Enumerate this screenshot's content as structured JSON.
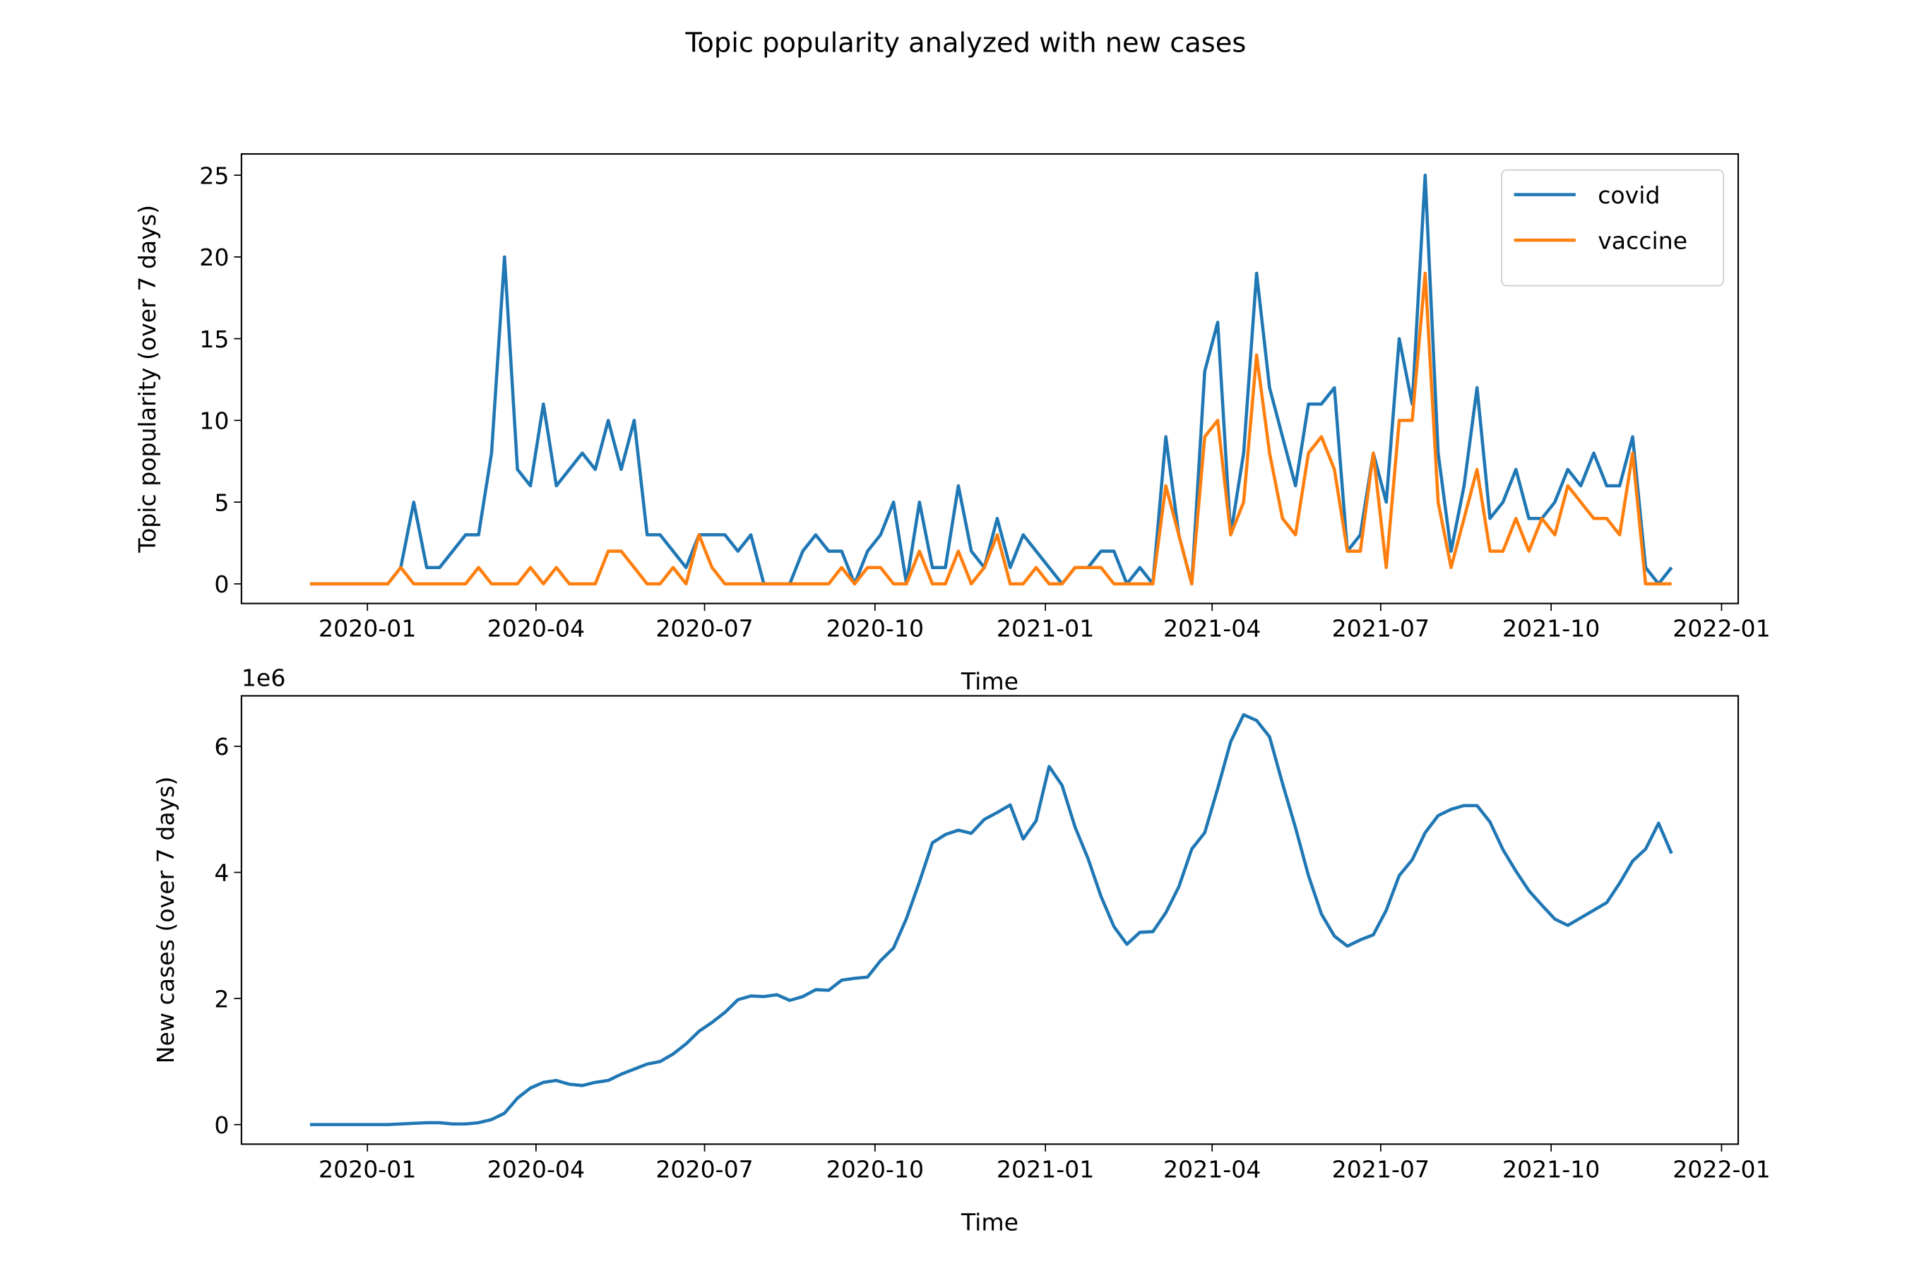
{
  "title": "Topic popularity analyzed with new cases",
  "chart_data": [
    {
      "type": "line",
      "xlabel": "Time",
      "ylabel": "Topic popularity (over 7 days)",
      "x": [
        "2019-12-01",
        "2019-12-08",
        "2019-12-15",
        "2019-12-22",
        "2019-12-29",
        "2020-01-05",
        "2020-01-12",
        "2020-01-19",
        "2020-01-26",
        "2020-02-02",
        "2020-02-09",
        "2020-02-16",
        "2020-02-23",
        "2020-03-01",
        "2020-03-08",
        "2020-03-15",
        "2020-03-22",
        "2020-03-29",
        "2020-04-05",
        "2020-04-12",
        "2020-04-19",
        "2020-04-26",
        "2020-05-03",
        "2020-05-10",
        "2020-05-17",
        "2020-05-24",
        "2020-05-31",
        "2020-06-07",
        "2020-06-14",
        "2020-06-21",
        "2020-06-28",
        "2020-07-05",
        "2020-07-12",
        "2020-07-19",
        "2020-07-26",
        "2020-08-02",
        "2020-08-09",
        "2020-08-16",
        "2020-08-23",
        "2020-08-30",
        "2020-09-06",
        "2020-09-13",
        "2020-09-20",
        "2020-09-27",
        "2020-10-04",
        "2020-10-11",
        "2020-10-18",
        "2020-10-25",
        "2020-11-01",
        "2020-11-08",
        "2020-11-15",
        "2020-11-22",
        "2020-11-29",
        "2020-12-06",
        "2020-12-13",
        "2020-12-20",
        "2020-12-27",
        "2021-01-03",
        "2021-01-10",
        "2021-01-17",
        "2021-01-24",
        "2021-01-31",
        "2021-02-07",
        "2021-02-14",
        "2021-02-21",
        "2021-02-28",
        "2021-03-07",
        "2021-03-14",
        "2021-03-21",
        "2021-03-28",
        "2021-04-04",
        "2021-04-11",
        "2021-04-18",
        "2021-04-25",
        "2021-05-02",
        "2021-05-09",
        "2021-05-16",
        "2021-05-23",
        "2021-05-30",
        "2021-06-06",
        "2021-06-13",
        "2021-06-20",
        "2021-06-27",
        "2021-07-04",
        "2021-07-11",
        "2021-07-18",
        "2021-07-25",
        "2021-08-01",
        "2021-08-08",
        "2021-08-15",
        "2021-08-22",
        "2021-08-29",
        "2021-09-05",
        "2021-09-12",
        "2021-09-19",
        "2021-09-26",
        "2021-10-03",
        "2021-10-10",
        "2021-10-17",
        "2021-10-24",
        "2021-10-31",
        "2021-11-07",
        "2021-11-14",
        "2021-11-21",
        "2021-11-28",
        "2021-12-05"
      ],
      "series": [
        {
          "name": "covid",
          "color": "#1f77b4",
          "values": [
            0,
            0,
            0,
            0,
            0,
            0,
            0,
            1,
            5,
            1,
            1,
            2,
            3,
            3,
            8,
            20,
            7,
            6,
            11,
            6,
            7,
            8,
            7,
            10,
            7,
            10,
            3,
            3,
            2,
            1,
            3,
            3,
            3,
            2,
            3,
            0,
            0,
            0,
            2,
            3,
            2,
            2,
            0,
            2,
            3,
            5,
            0,
            5,
            1,
            1,
            6,
            2,
            1,
            4,
            1,
            3,
            2,
            1,
            0,
            1,
            1,
            2,
            2,
            0,
            1,
            0,
            9,
            3,
            0,
            13,
            16,
            3,
            8,
            19,
            12,
            9,
            6,
            11,
            11,
            12,
            2,
            3,
            8,
            5,
            15,
            11,
            25,
            8,
            2,
            6,
            12,
            4,
            5,
            7,
            4,
            4,
            5,
            7,
            6,
            8,
            6,
            6,
            9,
            1,
            0,
            1
          ]
        },
        {
          "name": "vaccine",
          "color": "#ff7f0e",
          "values": [
            0,
            0,
            0,
            0,
            0,
            0,
            0,
            1,
            0,
            0,
            0,
            0,
            0,
            1,
            0,
            0,
            0,
            1,
            0,
            1,
            0,
            0,
            0,
            2,
            2,
            1,
            0,
            0,
            1,
            0,
            3,
            1,
            0,
            0,
            0,
            0,
            0,
            0,
            0,
            0,
            0,
            1,
            0,
            1,
            1,
            0,
            0,
            2,
            0,
            0,
            2,
            0,
            1,
            3,
            0,
            0,
            1,
            0,
            0,
            1,
            1,
            1,
            0,
            0,
            0,
            0,
            6,
            3,
            0,
            9,
            10,
            3,
            5,
            14,
            8,
            4,
            3,
            8,
            9,
            7,
            2,
            2,
            8,
            1,
            10,
            10,
            19,
            5,
            1,
            4,
            7,
            2,
            2,
            4,
            2,
            4,
            3,
            6,
            5,
            4,
            4,
            3,
            8,
            0,
            0,
            0
          ]
        }
      ],
      "xlim": [
        "2019-10-25",
        "2022-01-10"
      ],
      "xticks": [
        {
          "value": "2020-01-01",
          "label": "2020-01"
        },
        {
          "value": "2020-04-01",
          "label": "2020-04"
        },
        {
          "value": "2020-07-01",
          "label": "2020-07"
        },
        {
          "value": "2020-10-01",
          "label": "2020-10"
        },
        {
          "value": "2021-01-01",
          "label": "2021-01"
        },
        {
          "value": "2021-04-01",
          "label": "2021-04"
        },
        {
          "value": "2021-07-01",
          "label": "2021-07"
        },
        {
          "value": "2021-10-01",
          "label": "2021-10"
        },
        {
          "value": "2022-01-01",
          "label": "2022-01"
        }
      ],
      "ylim": [
        -1.2,
        26.3
      ],
      "yticks": [
        0,
        5,
        10,
        15,
        20,
        25
      ],
      "legend": "upper right",
      "grid": false
    },
    {
      "type": "line",
      "xlabel": "Time",
      "ylabel": "New cases (over 7 days)",
      "y_offset_label": "1e6",
      "x": [
        "2019-12-01",
        "2019-12-08",
        "2019-12-15",
        "2019-12-22",
        "2019-12-29",
        "2020-01-05",
        "2020-01-12",
        "2020-01-19",
        "2020-01-26",
        "2020-02-02",
        "2020-02-09",
        "2020-02-16",
        "2020-02-23",
        "2020-03-01",
        "2020-03-08",
        "2020-03-15",
        "2020-03-22",
        "2020-03-29",
        "2020-04-05",
        "2020-04-12",
        "2020-04-19",
        "2020-04-26",
        "2020-05-03",
        "2020-05-10",
        "2020-05-17",
        "2020-05-24",
        "2020-05-31",
        "2020-06-07",
        "2020-06-14",
        "2020-06-21",
        "2020-06-28",
        "2020-07-05",
        "2020-07-12",
        "2020-07-19",
        "2020-07-26",
        "2020-08-02",
        "2020-08-09",
        "2020-08-16",
        "2020-08-23",
        "2020-08-30",
        "2020-09-06",
        "2020-09-13",
        "2020-09-20",
        "2020-09-27",
        "2020-10-04",
        "2020-10-11",
        "2020-10-18",
        "2020-10-25",
        "2020-11-01",
        "2020-11-08",
        "2020-11-15",
        "2020-11-22",
        "2020-11-29",
        "2020-12-06",
        "2020-12-13",
        "2020-12-20",
        "2020-12-27",
        "2021-01-03",
        "2021-01-10",
        "2021-01-17",
        "2021-01-24",
        "2021-01-31",
        "2021-02-07",
        "2021-02-14",
        "2021-02-21",
        "2021-02-28",
        "2021-03-07",
        "2021-03-14",
        "2021-03-21",
        "2021-03-28",
        "2021-04-04",
        "2021-04-11",
        "2021-04-18",
        "2021-04-25",
        "2021-05-02",
        "2021-05-09",
        "2021-05-16",
        "2021-05-23",
        "2021-05-30",
        "2021-06-06",
        "2021-06-13",
        "2021-06-20",
        "2021-06-27",
        "2021-07-04",
        "2021-07-11",
        "2021-07-18",
        "2021-07-25",
        "2021-08-01",
        "2021-08-08",
        "2021-08-15",
        "2021-08-22",
        "2021-08-29",
        "2021-09-05",
        "2021-09-12",
        "2021-09-19",
        "2021-09-26",
        "2021-10-03",
        "2021-10-10",
        "2021-10-17",
        "2021-10-24",
        "2021-10-31",
        "2021-11-07",
        "2021-11-14",
        "2021-11-21",
        "2021-11-28",
        "2021-12-05"
      ],
      "series": [
        {
          "name": "new cases",
          "color": "#1f77b4",
          "values": [
            0,
            0,
            0,
            0,
            0,
            0,
            0,
            10000,
            20000,
            30000,
            30000,
            10000,
            10000,
            30000,
            80000,
            180000,
            420000,
            580000,
            670000,
            700000,
            640000,
            620000,
            670000,
            700000,
            800000,
            880000,
            960000,
            1000000,
            1120000,
            1280000,
            1480000,
            1620000,
            1780000,
            1980000,
            2040000,
            2030000,
            2060000,
            1970000,
            2030000,
            2140000,
            2130000,
            2290000,
            2320000,
            2340000,
            2600000,
            2800000,
            3270000,
            3850000,
            4470000,
            4600000,
            4670000,
            4620000,
            4840000,
            4950000,
            5070000,
            4530000,
            4820000,
            5680000,
            5380000,
            4720000,
            4220000,
            3620000,
            3140000,
            2860000,
            3050000,
            3060000,
            3360000,
            3770000,
            4370000,
            4630000,
            5330000,
            6070000,
            6500000,
            6410000,
            6150000,
            5410000,
            4710000,
            3950000,
            3340000,
            2990000,
            2830000,
            2930000,
            3010000,
            3400000,
            3950000,
            4200000,
            4630000,
            4900000,
            5000000,
            5060000,
            5060000,
            4800000,
            4360000,
            4020000,
            3710000,
            3480000,
            3260000,
            3160000,
            3280000,
            3400000,
            3520000,
            3830000,
            4180000,
            4370000,
            4780000,
            4300000
          ]
        }
      ],
      "xlim": [
        "2019-10-25",
        "2022-01-10"
      ],
      "xticks": [
        {
          "value": "2020-01-01",
          "label": "2020-01"
        },
        {
          "value": "2020-04-01",
          "label": "2020-04"
        },
        {
          "value": "2020-07-01",
          "label": "2020-07"
        },
        {
          "value": "2020-10-01",
          "label": "2020-10"
        },
        {
          "value": "2021-01-01",
          "label": "2021-01"
        },
        {
          "value": "2021-04-01",
          "label": "2021-04"
        },
        {
          "value": "2021-07-01",
          "label": "2021-07"
        },
        {
          "value": "2021-10-01",
          "label": "2021-10"
        },
        {
          "value": "2022-01-01",
          "label": "2022-01"
        }
      ],
      "ylim": [
        -310000,
        6800000
      ],
      "yticks": [
        {
          "value": 0,
          "label": "0"
        },
        {
          "value": 2000000,
          "label": "2"
        },
        {
          "value": 4000000,
          "label": "4"
        },
        {
          "value": 6000000,
          "label": "6"
        }
      ],
      "grid": false
    }
  ]
}
